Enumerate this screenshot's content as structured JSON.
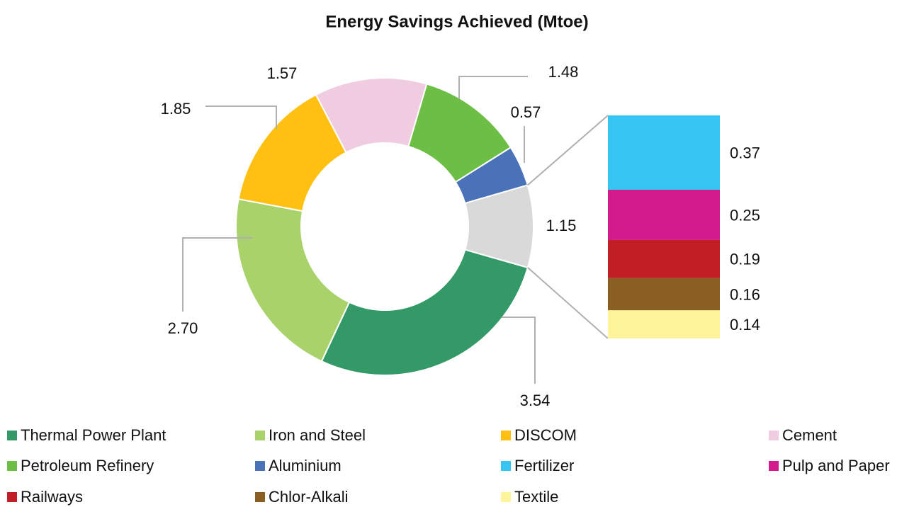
{
  "chart_data": {
    "type": "doughnut",
    "title": "Energy Savings Achieved (Mtoe)",
    "categories": [
      "Thermal Power Plant",
      "Iron and Steel",
      "DISCOM",
      "Cement",
      "Petroleum Refinery",
      "Aluminium",
      null
    ],
    "values": [
      3.54,
      2.7,
      1.85,
      1.57,
      1.48,
      0.57,
      1.15
    ],
    "value_labels": [
      "3.54",
      "2.70",
      "1.85",
      "1.57",
      "1.48",
      "0.57",
      "1.15"
    ],
    "colors": [
      "#339966",
      "#a9d26b",
      "#ffc012",
      "#f0cce1",
      "#6dbe45",
      "#4a72b8",
      "#d9d9d9"
    ],
    "breakdown": {
      "categories": [
        "Fertilizer",
        "Pulp and Paper",
        "Railways",
        "Chlor-Alkali",
        "Textile"
      ],
      "values": [
        0.37,
        0.25,
        0.19,
        0.16,
        0.14
      ],
      "colors": [
        "#36c5f0",
        "#d31b8e",
        "#c11f25",
        "#8b5e22",
        "#fdf49c"
      ]
    }
  }
}
